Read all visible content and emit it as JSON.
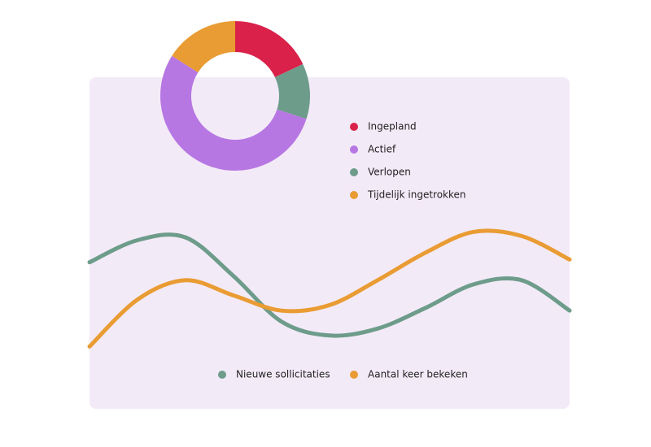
{
  "chart_data": [
    {
      "type": "pie",
      "categories": [
        "Ingepland",
        "Actief",
        "Verlopen",
        "Tijdelijk ingetrokken"
      ],
      "values": [
        18,
        54,
        12,
        16
      ],
      "colors": [
        "#d9214a",
        "#b777e3",
        "#6e9c8b",
        "#e99c33"
      ],
      "order": [
        0,
        2,
        1,
        3
      ]
    },
    {
      "type": "line",
      "categories": [
        null,
        null,
        null,
        null,
        null,
        null,
        null,
        null,
        null,
        null,
        null
      ],
      "ylim": [
        0,
        100
      ],
      "series": [
        {
          "name": "Nieuwe sollicitaties",
          "color": "#6e9c8b",
          "values": [
            69,
            85,
            87,
            59,
            26,
            16,
            21,
            36,
            53,
            56,
            34
          ]
        },
        {
          "name": "Aantal keer bekeken",
          "color": "#e99c33",
          "values": [
            8,
            42,
            56,
            45,
            34,
            38,
            56,
            76,
            91,
            88,
            71
          ]
        }
      ]
    }
  ]
}
